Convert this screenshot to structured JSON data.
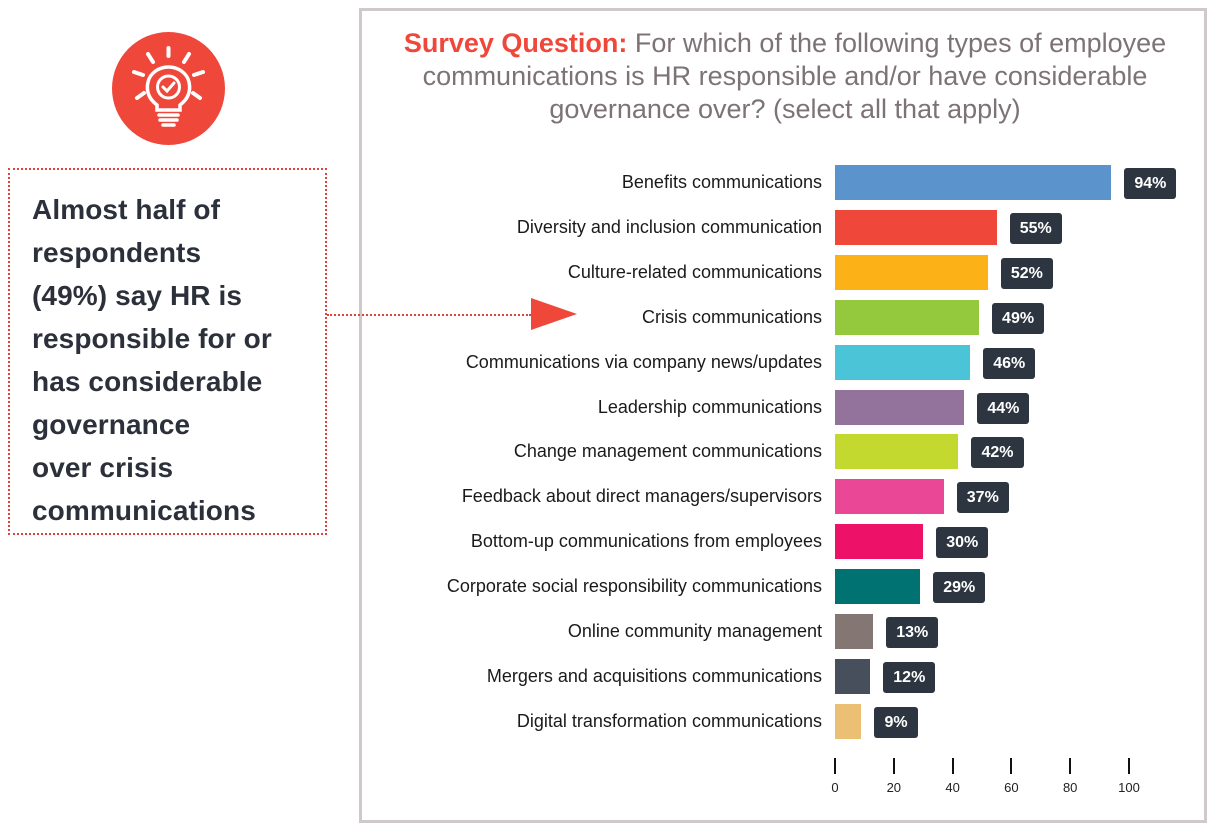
{
  "callout": {
    "lines": [
      "Almost half of",
      "respondents",
      "(49%) say HR is",
      "responsible for or",
      "has considerable",
      "governance",
      "over crisis",
      "communications"
    ]
  },
  "icon": {
    "name": "lightbulb-check-icon",
    "color": "#f0473b"
  },
  "chart_data": {
    "type": "bar",
    "orientation": "horizontal",
    "title_lead": "Survey Question:",
    "title": "For which of the following types of employee communications is HR responsible and/or have considerable governance over? (select all that apply)",
    "xlabel": "",
    "ylabel": "",
    "xlim": [
      0,
      100
    ],
    "xticks": [
      0,
      20,
      40,
      60,
      80,
      100
    ],
    "grid": false,
    "highlight": "Crisis communications",
    "categories": [
      "Benefits communications",
      "Diversity and inclusion communication",
      "Culture-related communications",
      "Crisis communications",
      "Communications via company news/updates",
      "Leadership communications",
      "Change management communications",
      "Feedback about direct managers/supervisors",
      "Bottom-up communications from employees",
      "Corporate social responsibility communications",
      "Online community management",
      "Mergers and acquisitions communications",
      "Digital transformation communications"
    ],
    "values": [
      94,
      55,
      52,
      49,
      46,
      44,
      42,
      37,
      30,
      29,
      13,
      12,
      9
    ],
    "value_labels": [
      "94%",
      "55%",
      "52%",
      "49%",
      "46%",
      "44%",
      "42%",
      "37%",
      "30%",
      "29%",
      "13%",
      "12%",
      "9%"
    ],
    "colors": [
      "#5b93cc",
      "#f0473b",
      "#fcb116",
      "#95c93d",
      "#4cc4d7",
      "#93729c",
      "#c4d930",
      "#ea4796",
      "#ee1168",
      "#007271",
      "#847673",
      "#464f5b",
      "#ebbf74"
    ]
  }
}
